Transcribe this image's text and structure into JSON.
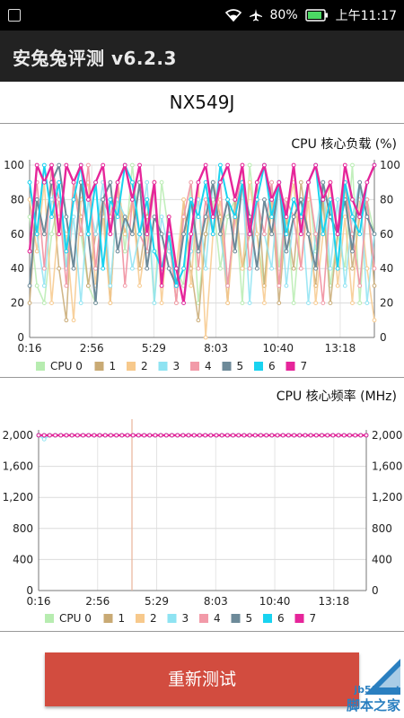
{
  "status_bar": {
    "battery": "80%",
    "time": "上午11:17"
  },
  "app": {
    "title": "安兔兔评测 v6.2.3"
  },
  "device": {
    "model": "NX549J"
  },
  "colors": {
    "cpu0": "#b7ecb0",
    "cpu1": "#c9aa74",
    "cpu2": "#f7c98c",
    "cpu3": "#8ee3f2",
    "cpu4": "#f29aa8",
    "cpu5": "#6d8a99",
    "cpu6": "#19d3f0",
    "cpu7": "#e6259a",
    "button": "#d24c3f"
  },
  "load_chart": {
    "title": "CPU 核心负载 (%)",
    "legend": [
      "CPU 0",
      "1",
      "2",
      "3",
      "4",
      "5",
      "6",
      "7"
    ]
  },
  "freq_chart": {
    "title": "CPU 核心频率 (MHz)",
    "legend": [
      "CPU 0",
      "1",
      "2",
      "3",
      "4",
      "5",
      "6",
      "7"
    ]
  },
  "actions": {
    "retest": "重新测试"
  },
  "watermark": {
    "site": "jb51.net",
    "name": "脚本之家"
  },
  "chart_data": [
    {
      "type": "line",
      "title": "CPU 核心负载 (%)",
      "x_ticks": [
        "0:16",
        "2:56",
        "5:29",
        "8:03",
        "10:40",
        "13:18"
      ],
      "y_ticks": [
        0,
        20,
        40,
        60,
        80,
        100
      ],
      "ylim": [
        0,
        100
      ],
      "series": [
        {
          "name": "CPU 0",
          "values": [
            70,
            30,
            20,
            60,
            80,
            40,
            90,
            60,
            30,
            20,
            80,
            70,
            90,
            50,
            100,
            60,
            80,
            20,
            90,
            60,
            40,
            30,
            90,
            20,
            60,
            80,
            40,
            70,
            80,
            20,
            100,
            60,
            30,
            90,
            40,
            80,
            20,
            70,
            90,
            50,
            80,
            30,
            60,
            40,
            100,
            20,
            80,
            60
          ]
        },
        {
          "name": "1",
          "values": [
            20,
            80,
            60,
            90,
            40,
            10,
            90,
            70,
            30,
            60,
            80,
            20,
            90,
            60,
            80,
            40,
            70,
            90,
            30,
            60,
            20,
            80,
            40,
            10,
            60,
            90,
            70,
            20,
            80,
            40,
            60,
            90,
            30,
            80,
            20,
            70,
            40,
            90,
            60,
            30,
            80,
            20,
            60,
            90,
            40,
            70,
            80,
            30
          ]
        },
        {
          "name": "2",
          "values": [
            80,
            50,
            90,
            20,
            70,
            60,
            10,
            80,
            90,
            30,
            70,
            20,
            90,
            60,
            80,
            30,
            60,
            90,
            20,
            70,
            40,
            80,
            30,
            90,
            0,
            60,
            80,
            20,
            70,
            40,
            90,
            60,
            20,
            80,
            30,
            70,
            90,
            40,
            80,
            20,
            60,
            90,
            30,
            70,
            20,
            80,
            40,
            10
          ]
        },
        {
          "name": "3",
          "values": [
            90,
            60,
            30,
            80,
            90,
            40,
            70,
            20,
            80,
            60,
            90,
            30,
            80,
            70,
            40,
            60,
            90,
            20,
            70,
            50,
            40,
            20,
            50,
            80,
            40,
            90,
            60,
            30,
            70,
            90,
            20,
            80,
            60,
            40,
            90,
            30,
            70,
            80,
            20,
            60,
            90,
            40,
            80,
            30,
            70,
            90,
            20,
            60
          ]
        },
        {
          "name": "4",
          "values": [
            50,
            90,
            40,
            100,
            80,
            30,
            90,
            60,
            100,
            40,
            80,
            70,
            90,
            30,
            80,
            60,
            50,
            90,
            40,
            60,
            20,
            70,
            90,
            40,
            80,
            60,
            90,
            30,
            70,
            100,
            40,
            80,
            60,
            90,
            30,
            80,
            70,
            40,
            90,
            60,
            20,
            80,
            40,
            90,
            60,
            30,
            80,
            40
          ]
        },
        {
          "name": "5",
          "values": [
            30,
            80,
            60,
            90,
            100,
            70,
            40,
            90,
            60,
            20,
            80,
            90,
            50,
            70,
            60,
            90,
            40,
            70,
            60,
            40,
            30,
            60,
            80,
            50,
            70,
            90,
            60,
            80,
            50,
            90,
            70,
            40,
            80,
            60,
            90,
            50,
            70,
            80,
            60,
            40,
            90,
            70,
            60,
            80,
            50,
            90,
            70,
            60
          ]
        },
        {
          "name": "6",
          "values": [
            90,
            60,
            100,
            70,
            90,
            50,
            80,
            100,
            60,
            90,
            40,
            80,
            70,
            100,
            90,
            60,
            80,
            50,
            40,
            60,
            30,
            40,
            80,
            70,
            90,
            60,
            100,
            80,
            70,
            90,
            60,
            80,
            100,
            70,
            90,
            60,
            80,
            70,
            90,
            100,
            60,
            80,
            40,
            90,
            70,
            60,
            90,
            100
          ]
        },
        {
          "name": "7",
          "values": [
            50,
            100,
            90,
            100,
            60,
            100,
            90,
            100,
            80,
            90,
            100,
            60,
            90,
            100,
            80,
            100,
            60,
            90,
            30,
            70,
            40,
            20,
            60,
            90,
            100,
            70,
            90,
            100,
            80,
            100,
            60,
            90,
            100,
            80,
            90,
            70,
            100,
            60,
            90,
            100,
            80,
            90,
            60,
            100,
            80,
            70,
            90,
            100
          ]
        }
      ]
    },
    {
      "type": "line",
      "title": "CPU 核心频率 (MHz)",
      "x_ticks": [
        "0:16",
        "2:56",
        "5:29",
        "8:03",
        "10:40",
        "13:18"
      ],
      "y_ticks": [
        0,
        400,
        800,
        1200,
        1600,
        2000
      ],
      "ylim": [
        0,
        2000
      ],
      "series": [
        {
          "name": "CPU 0",
          "values": [
            2000
          ]
        },
        {
          "name": "1",
          "values": [
            2000
          ]
        },
        {
          "name": "2",
          "values": [
            2000
          ]
        },
        {
          "name": "3",
          "values": [
            2000,
            1950,
            2000
          ]
        },
        {
          "name": "4",
          "values": [
            2000
          ]
        },
        {
          "name": "5",
          "values": [
            2000
          ]
        },
        {
          "name": "6",
          "values": [
            2000
          ]
        },
        {
          "name": "7",
          "values": [
            2000
          ]
        }
      ]
    }
  ]
}
